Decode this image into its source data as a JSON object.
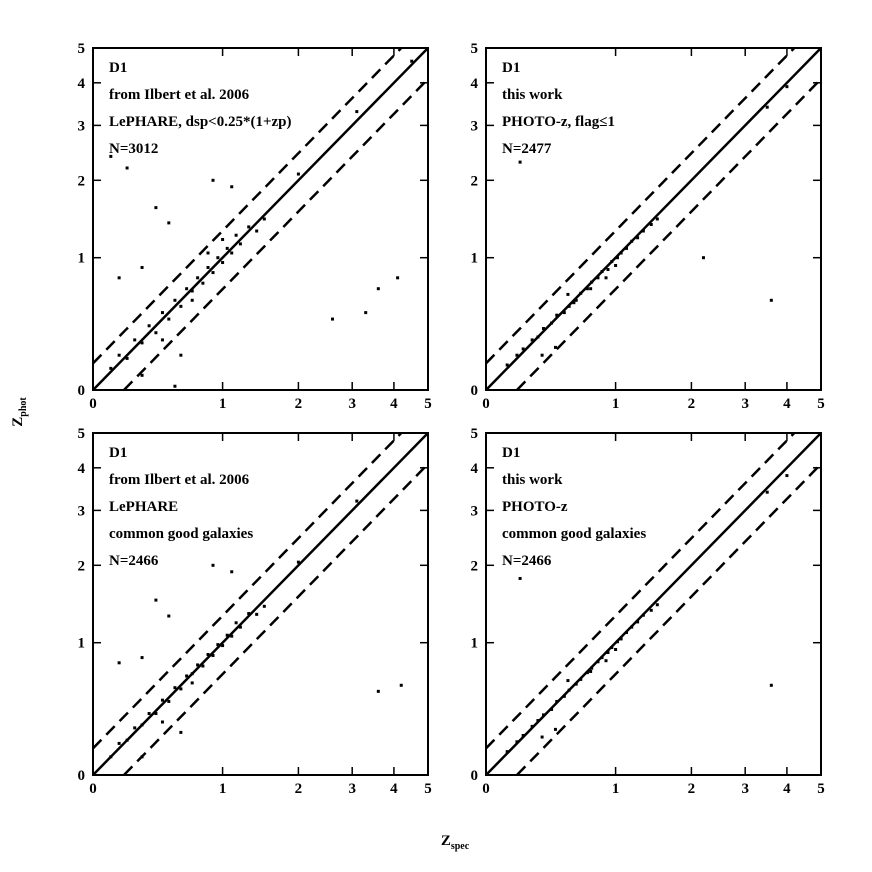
{
  "xlabel": {
    "text": "Z",
    "subscript": "spec"
  },
  "ylabel": {
    "text": "Z",
    "subscript": "phot"
  },
  "chart_data": [
    {
      "type": "scatter",
      "scale": "log1p",
      "xlim": [
        0,
        5
      ],
      "ylim": [
        0,
        5
      ],
      "xticks": [
        0,
        1,
        2,
        3,
        4,
        5
      ],
      "yticks": [
        0,
        1,
        2,
        3,
        4,
        5
      ],
      "color": "#000000",
      "annotations": [
        "D1",
        "from Ilbert et al. 2006",
        "LePHARE, dsp<0.25*(1+zp)",
        "N=3012"
      ],
      "lines": [
        {
          "style": "solid",
          "x": [
            0,
            5
          ],
          "y": [
            0,
            5
          ]
        },
        {
          "style": "dashed",
          "x": [
            0,
            4.2
          ],
          "y": [
            0.15,
            5
          ]
        },
        {
          "style": "dashed",
          "x": [
            0.18,
            5
          ],
          "y": [
            0,
            4.1
          ]
        }
      ],
      "x": [
        0.1,
        0.15,
        0.2,
        0.25,
        0.3,
        0.35,
        0.4,
        0.45,
        0.5,
        0.55,
        0.6,
        0.65,
        0.7,
        0.75,
        0.8,
        0.85,
        0.9,
        0.95,
        1.0,
        1.05,
        1.1,
        1.15,
        1.2,
        1.3,
        1.4,
        1.5,
        0.4,
        0.5,
        0.3,
        0.15,
        0.1,
        0.2,
        0.9,
        1.1,
        2.6,
        3.3,
        3.6,
        4.1,
        0.3,
        0.6,
        0.55,
        2.0,
        3.1,
        4.5,
        0.7,
        1.0,
        0.45,
        0.85
      ],
      "values": [
        0.12,
        0.2,
        0.18,
        0.3,
        0.28,
        0.4,
        0.35,
        0.5,
        0.45,
        0.6,
        0.55,
        0.7,
        0.68,
        0.8,
        0.75,
        0.9,
        0.85,
        1.0,
        0.95,
        1.1,
        1.05,
        1.25,
        1.15,
        1.35,
        1.3,
        1.45,
        1.6,
        1.4,
        0.9,
        0.8,
        2.4,
        2.2,
        2.0,
        1.9,
        0.45,
        0.5,
        0.7,
        0.8,
        0.08,
        0.2,
        0.02,
        2.1,
        3.3,
        4.6,
        0.6,
        1.2,
        0.3,
        1.05
      ]
    },
    {
      "type": "scatter",
      "scale": "log1p",
      "xlim": [
        0,
        5
      ],
      "ylim": [
        0,
        5
      ],
      "xticks": [
        0,
        1,
        2,
        3,
        4,
        5
      ],
      "yticks": [
        0,
        1,
        2,
        3,
        4,
        5
      ],
      "color": "#000000",
      "annotations": [
        "D1",
        "this work",
        "PHOTO-z, flag≤1",
        "N=2477"
      ],
      "lines": [
        {
          "style": "solid",
          "x": [
            0,
            5
          ],
          "y": [
            0,
            5
          ]
        },
        {
          "style": "dashed",
          "x": [
            0,
            4.2
          ],
          "y": [
            0.15,
            5
          ]
        },
        {
          "style": "dashed",
          "x": [
            0.18,
            5
          ],
          "y": [
            0,
            4.1
          ]
        }
      ],
      "x": [
        0.12,
        0.18,
        0.22,
        0.28,
        0.32,
        0.36,
        0.42,
        0.46,
        0.52,
        0.56,
        0.62,
        0.66,
        0.72,
        0.76,
        0.82,
        0.86,
        0.92,
        0.96,
        1.02,
        1.06,
        1.12,
        1.18,
        1.25,
        1.32,
        1.42,
        1.5,
        0.35,
        0.45,
        0.2,
        2.2,
        3.6,
        4.0,
        3.5,
        0.55,
        0.9,
        0.75,
        1.0,
        0.6
      ],
      "values": [
        0.14,
        0.2,
        0.24,
        0.3,
        0.32,
        0.38,
        0.42,
        0.48,
        0.5,
        0.55,
        0.6,
        0.66,
        0.7,
        0.76,
        0.8,
        0.86,
        0.88,
        0.96,
        1.0,
        1.05,
        1.1,
        1.18,
        1.22,
        1.3,
        1.38,
        1.45,
        0.2,
        0.25,
        2.3,
        1.0,
        0.6,
        3.9,
        3.4,
        0.65,
        0.8,
        0.7,
        0.92,
        0.58
      ]
    },
    {
      "type": "scatter",
      "scale": "log1p",
      "xlim": [
        0,
        5
      ],
      "ylim": [
        0,
        5
      ],
      "xticks": [
        0,
        1,
        2,
        3,
        4,
        5
      ],
      "yticks": [
        0,
        1,
        2,
        3,
        4,
        5
      ],
      "color": "#000000",
      "annotations": [
        "D1",
        "from Ilbert et al. 2006",
        "LePHARE",
        "common good galaxies",
        "N=2466"
      ],
      "lines": [
        {
          "style": "solid",
          "x": [
            0,
            5
          ],
          "y": [
            0,
            5
          ]
        },
        {
          "style": "dashed",
          "x": [
            0,
            4.2
          ],
          "y": [
            0.15,
            5
          ]
        },
        {
          "style": "dashed",
          "x": [
            0.18,
            5
          ],
          "y": [
            0,
            4.1
          ]
        }
      ],
      "x": [
        0.1,
        0.15,
        0.2,
        0.25,
        0.3,
        0.35,
        0.4,
        0.45,
        0.5,
        0.55,
        0.6,
        0.65,
        0.7,
        0.75,
        0.8,
        0.85,
        0.9,
        0.95,
        1.0,
        1.05,
        1.1,
        1.15,
        1.2,
        1.3,
        1.4,
        1.5,
        0.4,
        0.5,
        0.3,
        0.15,
        0.9,
        1.1,
        3.6,
        4.2,
        0.3,
        0.6,
        2.0,
        3.1,
        0.7,
        0.45
      ],
      "values": [
        0.1,
        0.18,
        0.2,
        0.28,
        0.3,
        0.38,
        0.38,
        0.48,
        0.47,
        0.58,
        0.57,
        0.68,
        0.7,
        0.78,
        0.77,
        0.88,
        0.87,
        0.98,
        0.97,
        1.08,
        1.07,
        1.22,
        1.17,
        1.33,
        1.32,
        1.42,
        1.5,
        1.3,
        0.85,
        0.8,
        2.0,
        1.9,
        0.55,
        0.6,
        0.1,
        0.25,
        2.05,
        3.2,
        0.62,
        0.32
      ]
    },
    {
      "type": "scatter",
      "scale": "log1p",
      "xlim": [
        0,
        5
      ],
      "ylim": [
        0,
        5
      ],
      "xticks": [
        0,
        1,
        2,
        3,
        4,
        5
      ],
      "yticks": [
        0,
        1,
        2,
        3,
        4,
        5
      ],
      "color": "#000000",
      "annotations": [
        "D1",
        "this work",
        "PHOTO-z",
        "common good galaxies",
        "N=2466"
      ],
      "lines": [
        {
          "style": "solid",
          "x": [
            0,
            5
          ],
          "y": [
            0,
            5
          ]
        },
        {
          "style": "dashed",
          "x": [
            0,
            4.2
          ],
          "y": [
            0.15,
            5
          ]
        },
        {
          "style": "dashed",
          "x": [
            0.18,
            5
          ],
          "y": [
            0,
            4.1
          ]
        }
      ],
      "x": [
        0.12,
        0.18,
        0.22,
        0.28,
        0.32,
        0.36,
        0.42,
        0.46,
        0.52,
        0.56,
        0.62,
        0.66,
        0.72,
        0.76,
        0.82,
        0.86,
        0.92,
        0.96,
        1.02,
        1.06,
        1.12,
        1.18,
        1.25,
        1.32,
        1.42,
        1.5,
        0.35,
        0.45,
        0.2,
        3.6,
        4.0,
        3.5,
        0.55,
        0.9,
        0.75,
        1.0
      ],
      "values": [
        0.13,
        0.19,
        0.23,
        0.29,
        0.33,
        0.37,
        0.41,
        0.47,
        0.51,
        0.56,
        0.61,
        0.65,
        0.71,
        0.75,
        0.81,
        0.85,
        0.9,
        0.95,
        1.01,
        1.04,
        1.11,
        1.17,
        1.23,
        1.31,
        1.37,
        1.44,
        0.22,
        0.27,
        1.8,
        0.6,
        3.8,
        3.4,
        0.64,
        0.82,
        0.72,
        0.93
      ]
    }
  ]
}
